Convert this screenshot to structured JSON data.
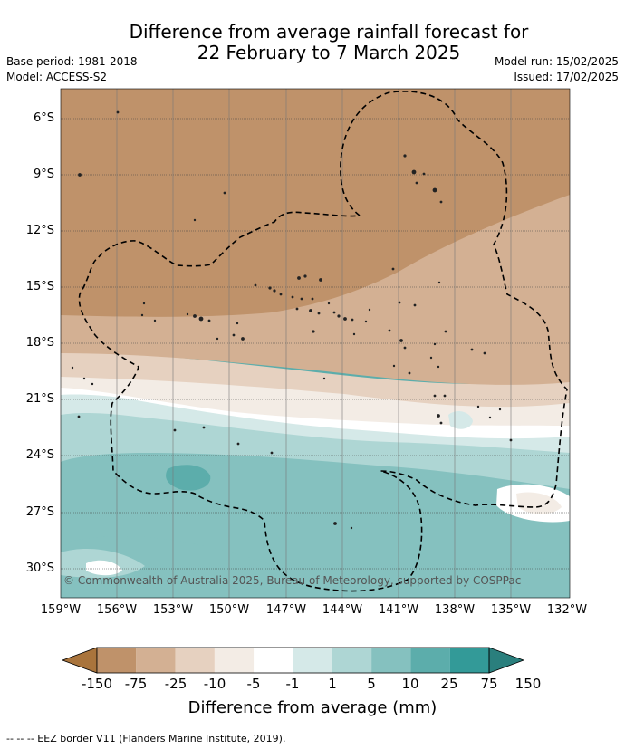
{
  "title_line1": "Difference from average rainfall forecast for",
  "title_line2": "22 February to 7 March 2025",
  "base_period": "Base period: 1981-2018",
  "model": "Model: ACCESS-S2",
  "model_run": "Model run: 15/02/2025",
  "issued": "Issued: 17/02/2025",
  "copyright": "© Commonwealth of Australia 2025, Bureau of Meteorology, supported by COSPPac",
  "lat_labels": [
    "6°S",
    "9°S",
    "12°S",
    "15°S",
    "18°S",
    "21°S",
    "24°S",
    "27°S",
    "30°S"
  ],
  "lon_labels": [
    "159°W",
    "156°W",
    "153°W",
    "150°W",
    "147°W",
    "144°W",
    "141°W",
    "138°W",
    "135°W",
    "132°W"
  ],
  "colorbar": {
    "title": "Difference from average (mm)",
    "ticks": [
      "-150",
      "-75",
      "-25",
      "-10",
      "-5",
      "-1",
      "1",
      "5",
      "10",
      "25",
      "75",
      "150"
    ],
    "colors": [
      "#a9743c",
      "#bf926a",
      "#d3b093",
      "#e6d1c0",
      "#f3ece5",
      "#ffffff",
      "#d5e9e8",
      "#aed6d4",
      "#85c1bf",
      "#5cadab",
      "#339a98",
      "#2a7f7d"
    ]
  },
  "map_colors": {
    "very_dry": "#bf926a",
    "dry": "#d3b093",
    "slightly_dry": "#e6d1c0",
    "near_dry": "#f3ece5",
    "neutral": "#ffffff",
    "near_wet": "#d5e9e8",
    "slightly_wet": "#aed6d4",
    "wet": "#85c1bf",
    "very_wet": "#5cadab"
  },
  "footnote": "-- -- -- EEZ border V11 (Flanders Marine Institute, 2019)."
}
